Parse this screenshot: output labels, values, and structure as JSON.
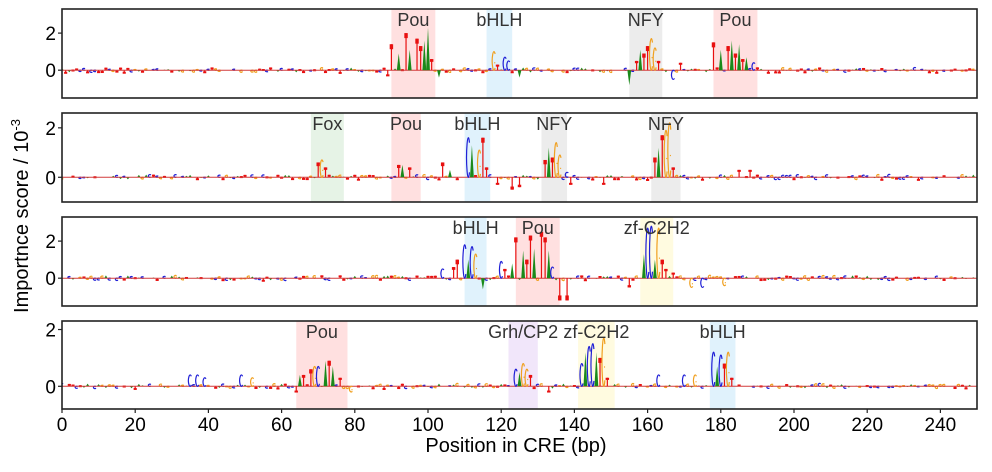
{
  "chart_data": {
    "type": "sequence-logo",
    "title": "",
    "xlabel": "Position in CRE (bp)",
    "ylabel": "Importnce score / 10",
    "ylabel_superscript": "-3",
    "xlim": [
      0,
      250
    ],
    "xticks": [
      0,
      20,
      40,
      60,
      80,
      100,
      120,
      140,
      160,
      180,
      200,
      220,
      240
    ],
    "nucleotide_colors": {
      "A": "#1a8a1a",
      "C": "#1f1fd6",
      "G": "#f0a020",
      "T": "#e81010"
    },
    "grid": false,
    "panels": [
      {
        "ylim": [
          -1.5,
          3.3
        ],
        "yticks": [
          0,
          2
        ],
        "motifs": [
          {
            "name": "Pou",
            "start": 90,
            "end": 102,
            "color": "#ffe0e0"
          },
          {
            "name": "bHLH",
            "start": 116,
            "end": 123,
            "color": "#e0f2fc"
          },
          {
            "name": "NFY",
            "start": 155,
            "end": 164,
            "color": "#ececec"
          },
          {
            "name": "Pou",
            "start": 178,
            "end": 190,
            "color": "#ffe0e0"
          }
        ],
        "peaks": [
          {
            "pos": 90,
            "value": 1.4,
            "base": "T"
          },
          {
            "pos": 92,
            "value": 0.9,
            "base": "A"
          },
          {
            "pos": 94,
            "value": 2.0,
            "base": "T"
          },
          {
            "pos": 95,
            "value": 1.1,
            "base": "A"
          },
          {
            "pos": 97,
            "value": 1.7,
            "base": "T"
          },
          {
            "pos": 98,
            "value": 1.3,
            "base": "T"
          },
          {
            "pos": 99,
            "value": 1.6,
            "base": "A"
          },
          {
            "pos": 100,
            "value": 2.3,
            "base": "A"
          },
          {
            "pos": 101,
            "value": 0.6,
            "base": "T"
          },
          {
            "pos": 89,
            "value": -0.3,
            "base": "T"
          },
          {
            "pos": 103,
            "value": -0.4,
            "base": "A"
          },
          {
            "pos": 118,
            "value": 1.0,
            "base": "G"
          },
          {
            "pos": 119,
            "value": 0.3,
            "base": "T"
          },
          {
            "pos": 121,
            "value": 0.7,
            "base": "C"
          },
          {
            "pos": 122,
            "value": 0.5,
            "base": "C"
          },
          {
            "pos": 125,
            "value": -0.4,
            "base": "A"
          },
          {
            "pos": 155,
            "value": -0.8,
            "base": "A"
          },
          {
            "pos": 157,
            "value": 0.5,
            "base": "T"
          },
          {
            "pos": 158,
            "value": 1.1,
            "base": "A"
          },
          {
            "pos": 159,
            "value": 0.9,
            "base": "T"
          },
          {
            "pos": 160,
            "value": 1.3,
            "base": "T"
          },
          {
            "pos": 161,
            "value": 1.7,
            "base": "G"
          },
          {
            "pos": 162,
            "value": 1.2,
            "base": "G"
          },
          {
            "pos": 163,
            "value": 0.5,
            "base": "T"
          },
          {
            "pos": 167,
            "value": -0.5,
            "base": "C"
          },
          {
            "pos": 169,
            "value": 0.4,
            "base": "T"
          },
          {
            "pos": 178,
            "value": 1.5,
            "base": "T"
          },
          {
            "pos": 180,
            "value": 1.1,
            "base": "A"
          },
          {
            "pos": 182,
            "value": 1.3,
            "base": "T"
          },
          {
            "pos": 183,
            "value": 1.6,
            "base": "A"
          },
          {
            "pos": 184,
            "value": 0.9,
            "base": "T"
          },
          {
            "pos": 185,
            "value": 1.4,
            "base": "A"
          },
          {
            "pos": 186,
            "value": 0.6,
            "base": "T"
          },
          {
            "pos": 187,
            "value": 0.7,
            "base": "A"
          },
          {
            "pos": 189,
            "value": 0.4,
            "base": "C"
          }
        ]
      },
      {
        "ylim": [
          -1.0,
          2.6
        ],
        "yticks": [
          0,
          2
        ],
        "motifs": [
          {
            "name": "Fox",
            "start": 68,
            "end": 77,
            "color": "#e6f3e6"
          },
          {
            "name": "Pou",
            "start": 90,
            "end": 98,
            "color": "#ffe0e0"
          },
          {
            "name": "bHLH",
            "start": 110,
            "end": 117,
            "color": "#e0f2fc"
          },
          {
            "name": "NFY",
            "start": 131,
            "end": 138,
            "color": "#ececec"
          },
          {
            "name": "NFY",
            "start": 161,
            "end": 169,
            "color": "#ececec"
          }
        ],
        "peaks": [
          {
            "pos": 70,
            "value": 0.6,
            "base": "T"
          },
          {
            "pos": 71,
            "value": 0.7,
            "base": "G"
          },
          {
            "pos": 72,
            "value": 0.4,
            "base": "T"
          },
          {
            "pos": 92,
            "value": 0.5,
            "base": "T"
          },
          {
            "pos": 93,
            "value": 0.5,
            "base": "A"
          },
          {
            "pos": 95,
            "value": 0.4,
            "base": "T"
          },
          {
            "pos": 104,
            "value": 0.6,
            "base": "T"
          },
          {
            "pos": 106,
            "value": 0.3,
            "base": "A"
          },
          {
            "pos": 111,
            "value": 1.6,
            "base": "C"
          },
          {
            "pos": 112,
            "value": 1.3,
            "base": "A"
          },
          {
            "pos": 114,
            "value": 1.1,
            "base": "G"
          },
          {
            "pos": 115,
            "value": 1.6,
            "base": "T"
          },
          {
            "pos": 116,
            "value": 0.4,
            "base": "T"
          },
          {
            "pos": 119,
            "value": -0.3,
            "base": "T"
          },
          {
            "pos": 123,
            "value": -0.5,
            "base": "T"
          },
          {
            "pos": 125,
            "value": -0.4,
            "base": "T"
          },
          {
            "pos": 132,
            "value": 0.7,
            "base": "T"
          },
          {
            "pos": 133,
            "value": 1.2,
            "base": "A"
          },
          {
            "pos": 134,
            "value": 0.8,
            "base": "T"
          },
          {
            "pos": 135,
            "value": 1.4,
            "base": "G"
          },
          {
            "pos": 136,
            "value": 0.9,
            "base": "G"
          },
          {
            "pos": 138,
            "value": 0.2,
            "base": "C"
          },
          {
            "pos": 139,
            "value": -0.3,
            "base": "T"
          },
          {
            "pos": 148,
            "value": -0.3,
            "base": "T"
          },
          {
            "pos": 162,
            "value": 0.8,
            "base": "T"
          },
          {
            "pos": 163,
            "value": 1.2,
            "base": "A"
          },
          {
            "pos": 164,
            "value": 1.7,
            "base": "T"
          },
          {
            "pos": 165,
            "value": 1.9,
            "base": "G"
          },
          {
            "pos": 166,
            "value": 2.2,
            "base": "G"
          },
          {
            "pos": 167,
            "value": 0.4,
            "base": "T"
          },
          {
            "pos": 185,
            "value": 0.3,
            "base": "T"
          },
          {
            "pos": 188,
            "value": 0.3,
            "base": "T"
          }
        ]
      },
      {
        "ylim": [
          -1.5,
          3.3
        ],
        "yticks": [
          0,
          2
        ],
        "motifs": [
          {
            "name": "bHLH",
            "start": 110,
            "end": 116,
            "color": "#e0f2fc"
          },
          {
            "name": "Pou",
            "start": 124,
            "end": 136,
            "color": "#ffe0e0"
          },
          {
            "name": "zf-C2H2",
            "start": 158,
            "end": 167,
            "color": "#fffbe0"
          }
        ],
        "peaks": [
          {
            "pos": 104,
            "value": 0.5,
            "base": "C"
          },
          {
            "pos": 107,
            "value": 0.6,
            "base": "T"
          },
          {
            "pos": 108,
            "value": 1.0,
            "base": "T"
          },
          {
            "pos": 110,
            "value": 1.8,
            "base": "C"
          },
          {
            "pos": 111,
            "value": 1.0,
            "base": "A"
          },
          {
            "pos": 112,
            "value": 1.7,
            "base": "C"
          },
          {
            "pos": 113,
            "value": 1.3,
            "base": "G"
          },
          {
            "pos": 115,
            "value": -0.6,
            "base": "A"
          },
          {
            "pos": 120,
            "value": 0.9,
            "base": "C"
          },
          {
            "pos": 121,
            "value": 0.5,
            "base": "T"
          },
          {
            "pos": 123,
            "value": 0.8,
            "base": "A"
          },
          {
            "pos": 124,
            "value": 2.2,
            "base": "T"
          },
          {
            "pos": 126,
            "value": 1.5,
            "base": "A"
          },
          {
            "pos": 127,
            "value": 1.0,
            "base": "T"
          },
          {
            "pos": 128,
            "value": 2.3,
            "base": "T"
          },
          {
            "pos": 129,
            "value": 1.6,
            "base": "A"
          },
          {
            "pos": 131,
            "value": 2.5,
            "base": "T"
          },
          {
            "pos": 132,
            "value": 2.2,
            "base": "T"
          },
          {
            "pos": 133,
            "value": 1.5,
            "base": "A"
          },
          {
            "pos": 134,
            "value": 0.6,
            "base": "C"
          },
          {
            "pos": 136,
            "value": -1.2,
            "base": "T"
          },
          {
            "pos": 138,
            "value": -1.2,
            "base": "T"
          },
          {
            "pos": 155,
            "value": -0.5,
            "base": "T"
          },
          {
            "pos": 159,
            "value": 1.3,
            "base": "A"
          },
          {
            "pos": 160,
            "value": 2.7,
            "base": "C"
          },
          {
            "pos": 161,
            "value": 2.8,
            "base": "C"
          },
          {
            "pos": 162,
            "value": 1.0,
            "base": "A"
          },
          {
            "pos": 163,
            "value": 2.7,
            "base": "G"
          },
          {
            "pos": 164,
            "value": 1.0,
            "base": "T"
          },
          {
            "pos": 165,
            "value": 0.5,
            "base": "T"
          },
          {
            "pos": 167,
            "value": 0.3,
            "base": "T"
          },
          {
            "pos": 172,
            "value": -0.5,
            "base": "G"
          },
          {
            "pos": 175,
            "value": -0.5,
            "base": "C"
          },
          {
            "pos": 181,
            "value": -0.4,
            "base": "G"
          }
        ]
      },
      {
        "ylim": [
          -0.8,
          2.3
        ],
        "yticks": [
          0,
          2
        ],
        "motifs": [
          {
            "name": "Pou",
            "start": 64,
            "end": 78,
            "color": "#ffe0e0"
          },
          {
            "name": "Grh/CP2",
            "start": 122,
            "end": 130,
            "color": "#f1e6fa"
          },
          {
            "name": "zf-C2H2",
            "start": 141,
            "end": 151,
            "color": "#fffbe0"
          },
          {
            "name": "bHLH",
            "start": 177,
            "end": 184,
            "color": "#e0f2fc"
          }
        ],
        "peaks": [
          {
            "pos": 35,
            "value": 0.4,
            "base": "C"
          },
          {
            "pos": 37,
            "value": 0.4,
            "base": "C"
          },
          {
            "pos": 39,
            "value": 0.3,
            "base": "C"
          },
          {
            "pos": 49,
            "value": 0.4,
            "base": "C"
          },
          {
            "pos": 52,
            "value": 0.3,
            "base": "G"
          },
          {
            "pos": 64,
            "value": -0.2,
            "base": "T"
          },
          {
            "pos": 65,
            "value": 0.4,
            "base": "A"
          },
          {
            "pos": 66,
            "value": 0.4,
            "base": "T"
          },
          {
            "pos": 68,
            "value": 0.6,
            "base": "T"
          },
          {
            "pos": 69,
            "value": 0.7,
            "base": "G"
          },
          {
            "pos": 70,
            "value": 0.7,
            "base": "C"
          },
          {
            "pos": 72,
            "value": 0.9,
            "base": "A"
          },
          {
            "pos": 73,
            "value": 0.9,
            "base": "T"
          },
          {
            "pos": 74,
            "value": 0.7,
            "base": "A"
          },
          {
            "pos": 76,
            "value": 0.3,
            "base": "T"
          },
          {
            "pos": 79,
            "value": -0.2,
            "base": "G"
          },
          {
            "pos": 124,
            "value": 0.6,
            "base": "C"
          },
          {
            "pos": 125,
            "value": 0.5,
            "base": "A"
          },
          {
            "pos": 126,
            "value": 0.8,
            "base": "G"
          },
          {
            "pos": 127,
            "value": 0.6,
            "base": "G"
          },
          {
            "pos": 128,
            "value": 0.4,
            "base": "T"
          },
          {
            "pos": 133,
            "value": -0.2,
            "base": "T"
          },
          {
            "pos": 142,
            "value": 0.8,
            "base": "C"
          },
          {
            "pos": 143,
            "value": 1.2,
            "base": "A"
          },
          {
            "pos": 144,
            "value": 1.4,
            "base": "C"
          },
          {
            "pos": 145,
            "value": 1.5,
            "base": "C"
          },
          {
            "pos": 146,
            "value": 1.2,
            "base": "A"
          },
          {
            "pos": 147,
            "value": 1.0,
            "base": "T"
          },
          {
            "pos": 148,
            "value": 1.7,
            "base": "G"
          },
          {
            "pos": 149,
            "value": 0.3,
            "base": "T"
          },
          {
            "pos": 163,
            "value": 0.4,
            "base": "C"
          },
          {
            "pos": 170,
            "value": 0.4,
            "base": "C"
          },
          {
            "pos": 173,
            "value": 0.4,
            "base": "G"
          },
          {
            "pos": 178,
            "value": 1.2,
            "base": "C"
          },
          {
            "pos": 179,
            "value": 0.7,
            "base": "A"
          },
          {
            "pos": 180,
            "value": 1.1,
            "base": "C"
          },
          {
            "pos": 181,
            "value": 0.8,
            "base": "T"
          },
          {
            "pos": 182,
            "value": 1.2,
            "base": "G"
          },
          {
            "pos": 183,
            "value": 0.3,
            "base": "T"
          }
        ]
      }
    ]
  }
}
